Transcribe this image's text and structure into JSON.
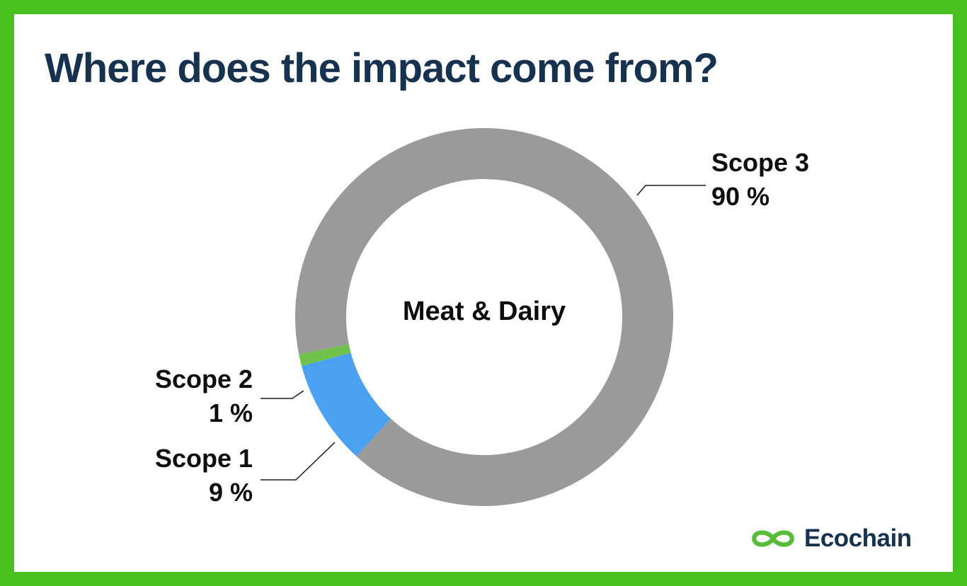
{
  "page": {
    "title": "Where does the impact come from?",
    "border_color": "#47C120",
    "title_color": "#16324F",
    "background_color": "#FFFFFF"
  },
  "chart_data": {
    "type": "pie",
    "variant": "donut",
    "title": "Where does the impact come from?",
    "center_label": "Meat & Dairy",
    "start_angle_deg": 258.6,
    "direction": "clockwise",
    "legend_position": "callout-labels",
    "segments": [
      {
        "label": "Scope 3",
        "value": 90,
        "unit": "%",
        "display": "90 %",
        "color": "#9A9A9A"
      },
      {
        "label": "Scope 1",
        "value": 9,
        "unit": "%",
        "display": "9 %",
        "color": "#4AA1F2"
      },
      {
        "label": "Scope 2",
        "value": 1,
        "unit": "%",
        "display": "1 %",
        "color": "#70C24A"
      }
    ]
  },
  "logo": {
    "text": "Ecochain",
    "icon": "infinity-icon",
    "icon_color": "#57BC38",
    "text_color": "#16324F"
  }
}
